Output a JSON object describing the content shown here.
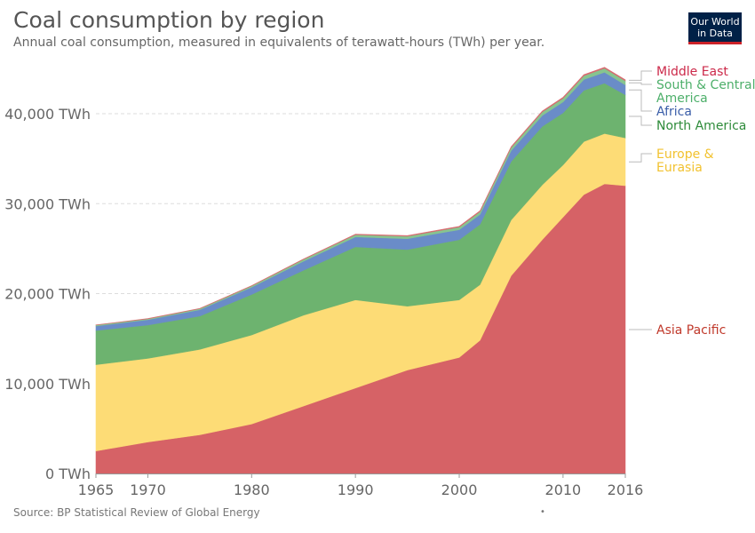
{
  "title": "Coal consumption by region",
  "subtitle": "Annual coal consumption, measured in equivalents of terawatt-hours (TWh) per year.",
  "logo": {
    "line1": "Our World",
    "line2": "in Data"
  },
  "source": "Source: BP Statistical Review of Global Energy",
  "colors": {
    "asia_pacific": "#d66266",
    "europe_eurasia": "#fddc76",
    "north_america": "#6db36f",
    "africa": "#6a8cc8",
    "south_central_america": "#87c48f",
    "middle_east": "#d8696f",
    "asia_pacific_label": "#c0392b",
    "europe_eurasia_label": "#f2c230",
    "north_america_label": "#2e8b3a",
    "africa_label": "#3a5ea8",
    "south_central_america_label": "#4daf6a",
    "middle_east_label": "#cc2a4a"
  },
  "chart_data": {
    "type": "area",
    "stacked": true,
    "title": "Coal consumption by region",
    "subtitle": "Annual coal consumption, measured in equivalents of terawatt-hours (TWh) per year.",
    "ylim": [
      0,
      45000
    ],
    "y_ticks": [
      0,
      10000,
      20000,
      30000,
      40000
    ],
    "y_tick_labels": [
      "0 TWh",
      "10,000 TWh",
      "20,000 TWh",
      "30,000 TWh",
      "40,000 TWh"
    ],
    "x_ticks": [
      1965,
      1970,
      1980,
      1990,
      2000,
      2010,
      2016
    ],
    "x_tick_labels": [
      "1965",
      "1970",
      "1980",
      "1990",
      "2000",
      "2010",
      "2016"
    ],
    "grid": "horizontal dashed",
    "legend": "right (labels at series ends)",
    "x": [
      1965,
      1970,
      1975,
      1980,
      1985,
      1990,
      1995,
      2000,
      2002,
      2005,
      2008,
      2010,
      2012,
      2014,
      2016
    ],
    "series": [
      {
        "name": "Asia Pacific",
        "values": [
          2500,
          3500,
          4300,
          5500,
          7500,
          9500,
          11500,
          12900,
          14800,
          22000,
          26000,
          28500,
          31000,
          32200,
          32000
        ]
      },
      {
        "name": "Europe & Eurasia",
        "values": [
          9600,
          9300,
          9500,
          9900,
          10100,
          9800,
          7100,
          6400,
          6200,
          6200,
          6100,
          5800,
          5900,
          5600,
          5300
        ]
      },
      {
        "name": "North America",
        "values": [
          3800,
          3700,
          3700,
          4500,
          5000,
          5900,
          6300,
          6700,
          6700,
          6500,
          6500,
          5800,
          5700,
          5600,
          4800
        ]
      },
      {
        "name": "Africa",
        "values": [
          500,
          600,
          700,
          800,
          1000,
          1100,
          1200,
          1100,
          1100,
          1200,
          1200,
          1200,
          1200,
          1200,
          1100
        ]
      },
      {
        "name": "South & Central America",
        "values": [
          100,
          100,
          120,
          150,
          200,
          250,
          280,
          300,
          320,
          350,
          400,
          420,
          430,
          450,
          450
        ]
      },
      {
        "name": "Middle East",
        "values": [
          20,
          25,
          30,
          40,
          50,
          60,
          70,
          80,
          85,
          90,
          100,
          110,
          120,
          120,
          120
        ]
      }
    ]
  }
}
